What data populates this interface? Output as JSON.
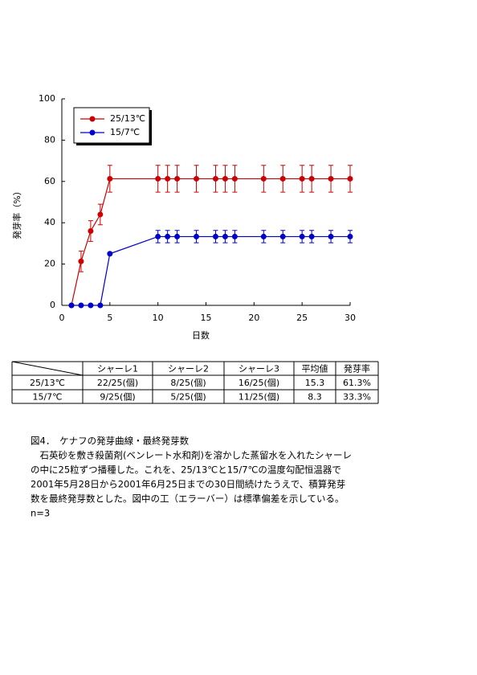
{
  "chart_data": {
    "type": "line",
    "xlabel": "日数",
    "ylabel": "発芽率（%）",
    "x": [
      1,
      2,
      3,
      4,
      5,
      10,
      11,
      12,
      14,
      16,
      17,
      18,
      21,
      23,
      25,
      26,
      28,
      30
    ],
    "series": [
      {
        "name": "25/13℃",
        "color": "#cc0000",
        "values": [
          0,
          21.3,
          36,
          44,
          61.3,
          61.3,
          61.3,
          61.3,
          61.3,
          61.3,
          61.3,
          61.3,
          61.3,
          61.3,
          61.3,
          61.3,
          61.3,
          61.3
        ],
        "errors": [
          null,
          5,
          5,
          5,
          6.5,
          6.5,
          6.5,
          6.5,
          6.5,
          6.5,
          6.5,
          6.5,
          6.5,
          6.5,
          6.5,
          6.5,
          6.5,
          6.5
        ]
      },
      {
        "name": "15/7℃",
        "color": "#0000cc",
        "values": [
          0,
          0,
          0,
          0,
          25,
          33.3,
          33.3,
          33.3,
          33.3,
          33.3,
          33.3,
          33.3,
          33.3,
          33.3,
          33.3,
          33.3,
          33.3,
          33.3
        ],
        "errors": [
          null,
          null,
          null,
          null,
          null,
          3,
          3,
          3,
          3,
          3,
          3,
          3,
          3,
          3,
          3,
          3,
          3,
          3
        ]
      }
    ],
    "xlim": [
      0,
      30
    ],
    "xticks": [
      0,
      5,
      10,
      15,
      20,
      25,
      30
    ],
    "ylim": [
      0,
      100
    ],
    "yticks": [
      0,
      20,
      40,
      60,
      80,
      100
    ]
  },
  "table": {
    "header": [
      "シャーレ1",
      "シャーレ2",
      "シャーレ3",
      "平均値",
      "発芽率"
    ],
    "rows": [
      [
        "25/13℃",
        "22/25(個)",
        "8/25(個)",
        "16/25(個)",
        "15.3",
        "61.3%"
      ],
      [
        "15/7℃",
        "9/25(個)",
        "5/25(個)",
        "11/25(個)",
        "8.3",
        "33.3%"
      ]
    ]
  },
  "caption": {
    "title": "図4．　ケナフの発芽曲線・最終発芽数",
    "lines": [
      "　石英砂を敷き殺菌剤(ベンレート水和剤)を溶かした蒸留水を入れたシャーレ",
      "の中に25粒ずつ播種した。これを、25/13℃と15/7℃の温度勾配恒温器で",
      "2001年5月28日から2001年6月25日までの30日間続けたうえで、積算発芽",
      "数を最終発芽数とした。図中の工（エラーバー）は標準偏差を示している。",
      "n=3"
    ]
  }
}
